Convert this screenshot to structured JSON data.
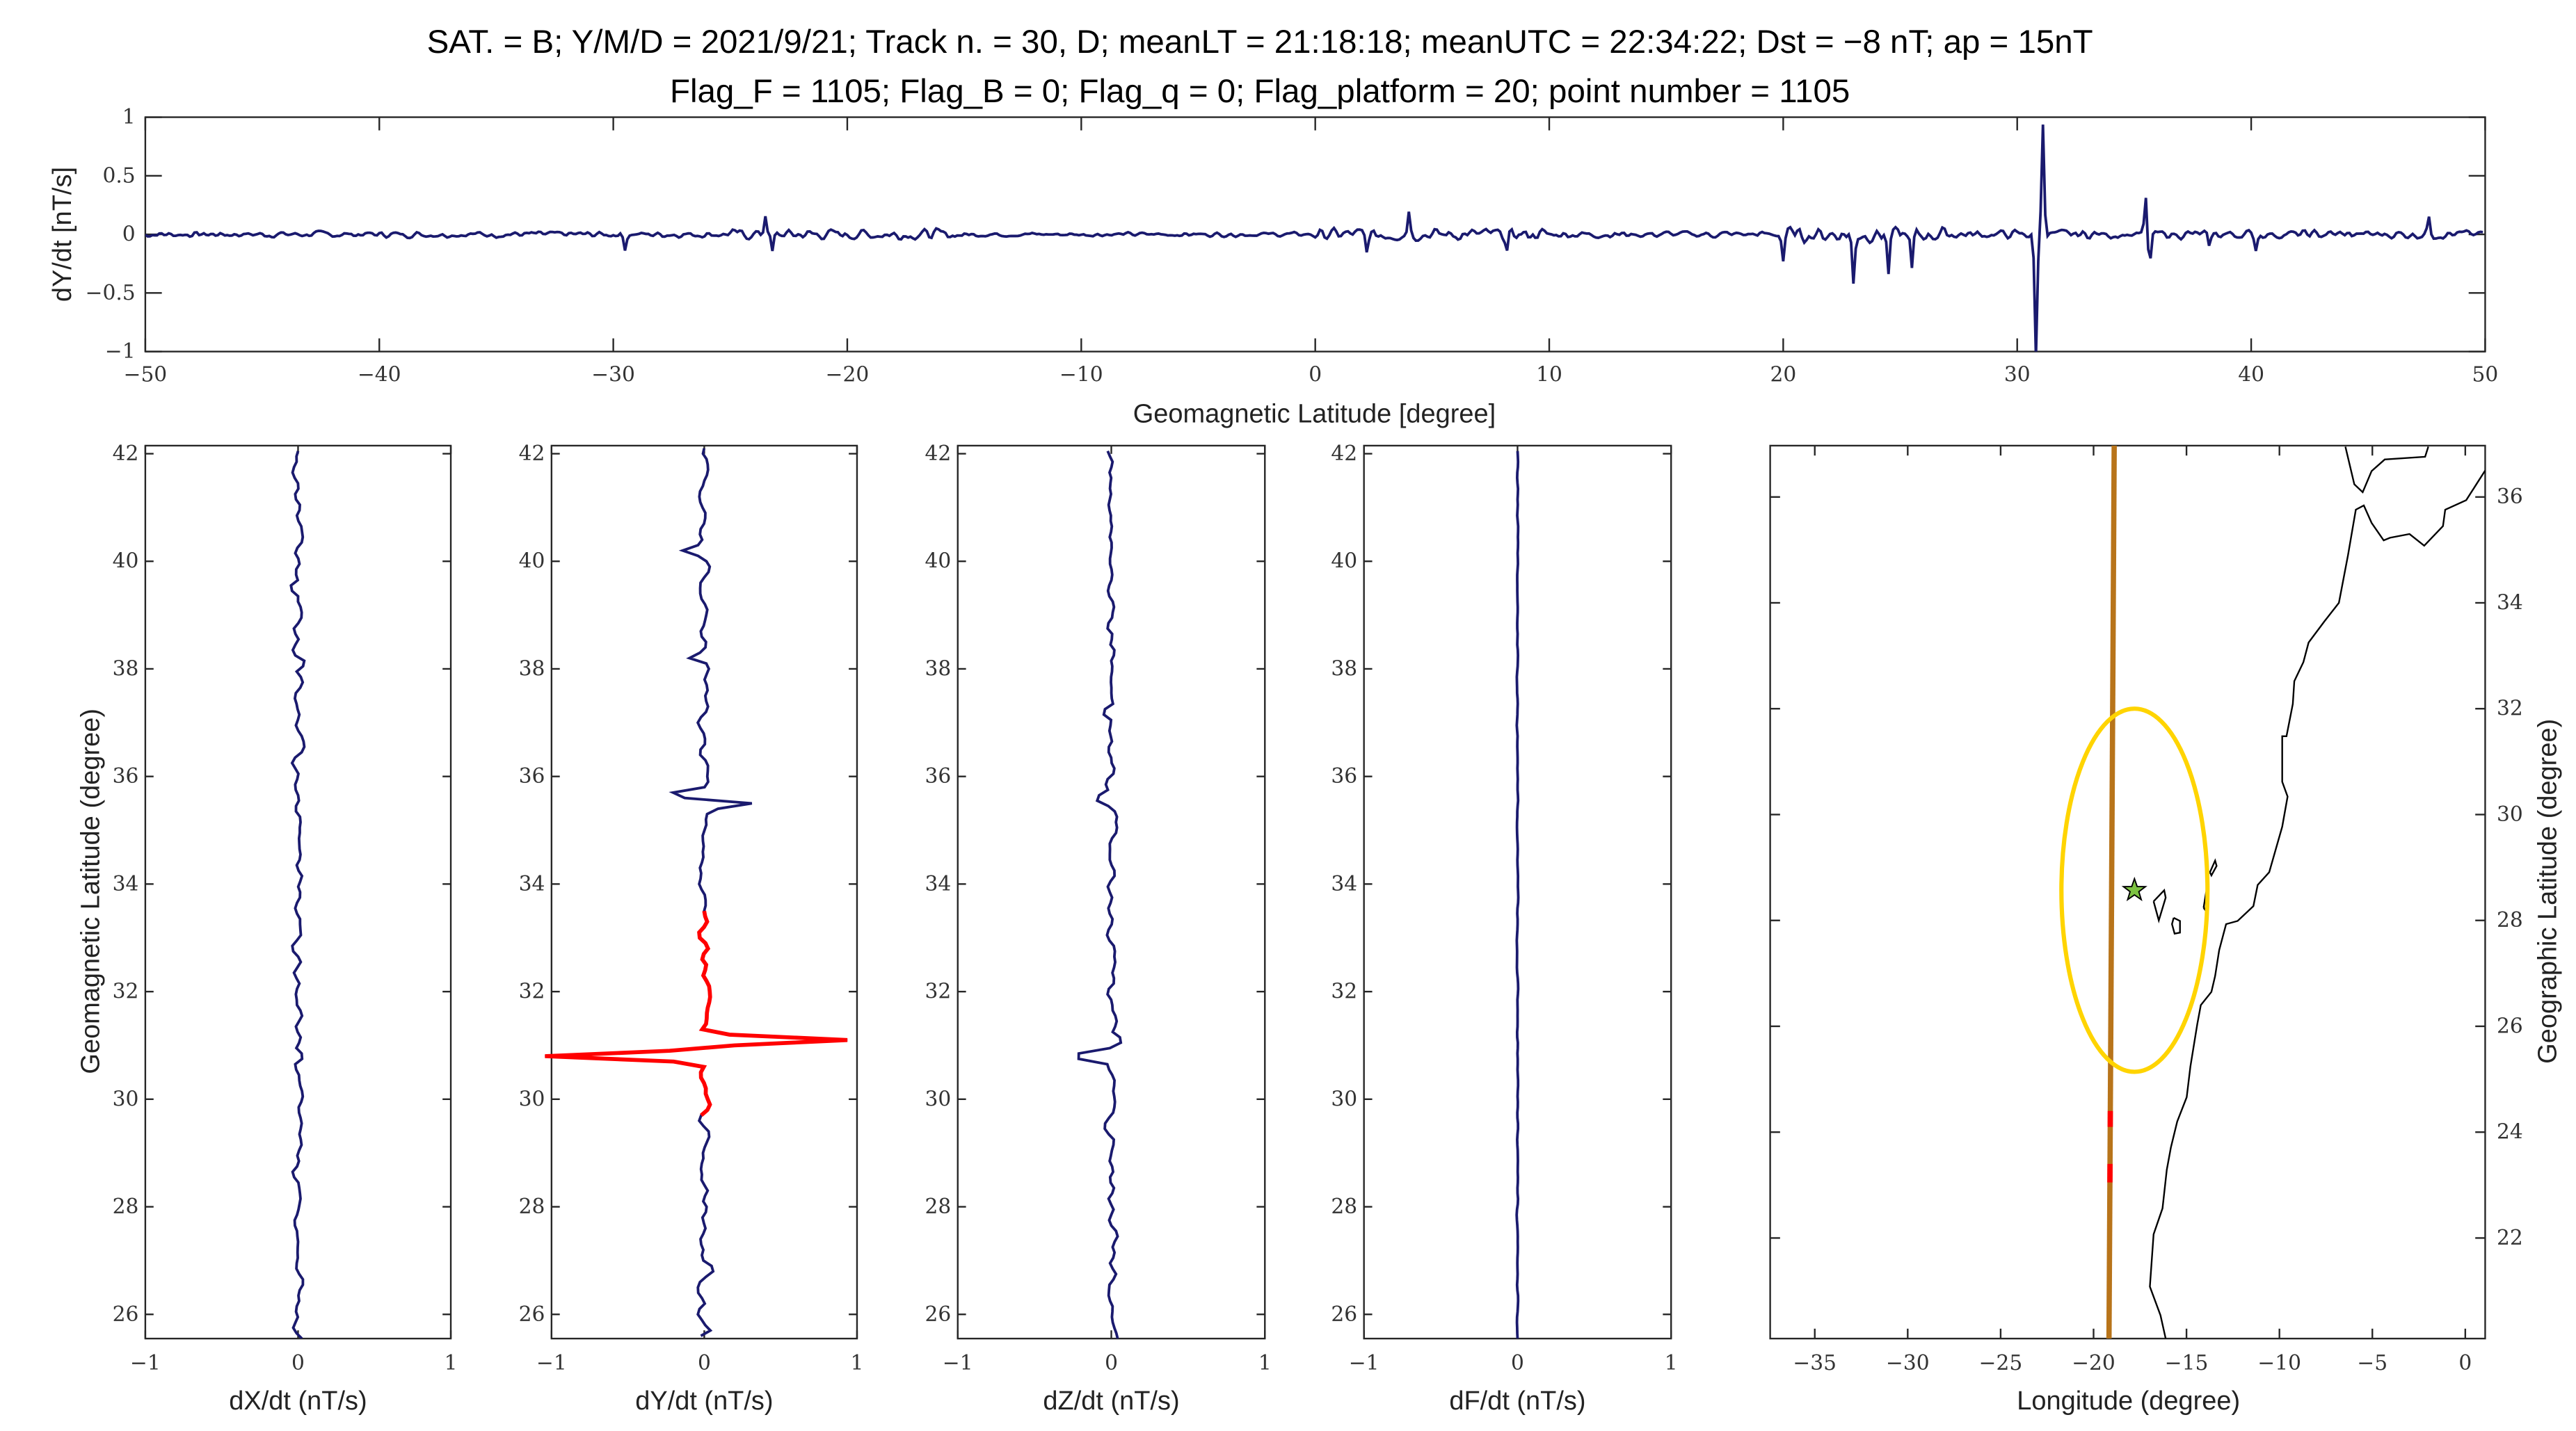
{
  "title": {
    "line1": "SAT. = B; Y/M/D = 2021/9/21; Track n. = 30, D; meanLT = 21:18:18; meanUTC = 22:34:22; Dst = −8 nT; ap = 15nT",
    "line2": "Flag_F = 1105; Flag_B = 0; Flag_q = 0; Flag_platform = 20; point number = 1105"
  },
  "colors": {
    "series": "#1a1a6e",
    "highlight": "#ff0000",
    "track": "#b8741a",
    "ellipse": "#ffd400",
    "star": "#7dc242",
    "coast": "#000000"
  },
  "chart_data": [
    {
      "id": "top",
      "type": "line",
      "xlabel": "Geomagnetic Latitude [degree]",
      "ylabel": "dY/dt [nT/s]",
      "xlim": [
        -50,
        50
      ],
      "ylim": [
        -1,
        1
      ],
      "xticks": [
        -50,
        -40,
        -30,
        -20,
        -10,
        0,
        10,
        20,
        30,
        40,
        50
      ],
      "xtick_labels": [
        "−50",
        "−40",
        "−30",
        "−20",
        "−10",
        "0",
        "10",
        "20",
        "30",
        "40",
        "50"
      ],
      "yticks": [
        -1,
        -0.5,
        0,
        0.5,
        1
      ],
      "ytick_labels": [
        "−1",
        "−0.5",
        "0",
        "0.5",
        "1"
      ],
      "series": "dY"
    },
    {
      "id": "dX",
      "type": "line",
      "xlabel": "dX/dt (nT/s)",
      "ylabel": "Geomagnetic Latitude (degree)",
      "xlim": [
        -1,
        1
      ],
      "ylim": [
        25.55,
        42.15
      ],
      "series": "dX"
    },
    {
      "id": "dY",
      "type": "line",
      "xlabel": "dY/dt (nT/s)",
      "xlim": [
        -1,
        1
      ],
      "ylim": [
        25.55,
        42.15
      ],
      "series": "dY",
      "highlight_range": [
        29.7,
        33.6
      ]
    },
    {
      "id": "dZ",
      "type": "line",
      "xlabel": "dZ/dt (nT/s)",
      "xlim": [
        -1,
        1
      ],
      "ylim": [
        25.55,
        42.15
      ],
      "series": "dZ"
    },
    {
      "id": "dF",
      "type": "line",
      "xlabel": "dF/dt (nT/s)",
      "xlim": [
        -1,
        1
      ],
      "ylim": [
        25.55,
        42.15
      ],
      "series": "dF"
    },
    {
      "id": "map",
      "type": "map",
      "xlabel": "Longitude (degree)",
      "ylabel": "Geographic Latitude (degree)",
      "xlim": [
        -37.4,
        1.07
      ],
      "ylim": [
        20.1,
        36.97
      ],
      "xticks": [
        -35,
        -30,
        -25,
        -20,
        -15,
        -10,
        -5,
        0
      ],
      "xtick_labels": [
        "−35",
        "−30",
        "−25",
        "−20",
        "−15",
        "−10",
        "−5",
        "0"
      ],
      "yticks": [
        22,
        24,
        26,
        28,
        30,
        32,
        34,
        36
      ],
      "ytick_labels": [
        "22",
        "24",
        "26",
        "28",
        "30",
        "32",
        "34",
        "36"
      ],
      "track": [
        [
          -18.89,
          36.97
        ],
        [
          -19.17,
          20.1
        ]
      ],
      "track_highlights": [
        [
          24.1,
          24.4
        ],
        [
          23.05,
          23.4
        ]
      ],
      "epicenter": {
        "lon": -17.8,
        "lat": 28.57
      },
      "ellipse": {
        "lon": -17.8,
        "lat": 28.57,
        "rlon": 3.93,
        "rlat": 3.43
      },
      "coastlines": [
        [
          [
            -6.45,
            36.95
          ],
          [
            -5.97,
            36.24
          ],
          [
            -5.52,
            36.09
          ],
          [
            -5.04,
            36.49
          ],
          [
            -4.33,
            36.71
          ],
          [
            -2.16,
            36.76
          ],
          [
            -1.99,
            36.95
          ]
        ],
        [
          [
            1.07,
            36.5
          ],
          [
            0.05,
            35.94
          ],
          [
            -1.08,
            35.76
          ],
          [
            -1.2,
            35.45
          ],
          [
            -2.21,
            35.08
          ],
          [
            -3.0,
            35.3
          ],
          [
            -4.05,
            35.23
          ],
          [
            -4.39,
            35.18
          ],
          [
            -5.04,
            35.51
          ],
          [
            -5.46,
            35.84
          ],
          [
            -5.89,
            35.76
          ],
          [
            -6.31,
            34.9
          ],
          [
            -6.8,
            34.0
          ],
          [
            -7.58,
            33.65
          ],
          [
            -8.43,
            33.25
          ],
          [
            -8.71,
            32.88
          ],
          [
            -9.2,
            32.52
          ],
          [
            -9.28,
            32.09
          ],
          [
            -9.62,
            31.48
          ],
          [
            -9.85,
            31.48
          ],
          [
            -9.85,
            30.62
          ],
          [
            -9.56,
            30.34
          ],
          [
            -9.85,
            29.77
          ],
          [
            -10.55,
            28.91
          ],
          [
            -11.17,
            28.67
          ],
          [
            -11.4,
            28.27
          ],
          [
            -12.25,
            27.99
          ],
          [
            -12.87,
            27.93
          ],
          [
            -13.24,
            27.44
          ],
          [
            -13.46,
            26.95
          ],
          [
            -13.66,
            26.65
          ],
          [
            -14.23,
            26.4
          ],
          [
            -14.42,
            26.04
          ],
          [
            -14.79,
            25.24
          ],
          [
            -14.99,
            24.66
          ],
          [
            -15.5,
            24.2
          ],
          [
            -15.84,
            23.71
          ],
          [
            -16.06,
            23.29
          ],
          [
            -16.29,
            22.56
          ],
          [
            -16.77,
            22.07
          ],
          [
            -16.97,
            21.08
          ],
          [
            -16.4,
            20.54
          ],
          [
            -16.12,
            20.1
          ]
        ],
        [
          [
            -16.77,
            28.36
          ],
          [
            -16.2,
            28.57
          ],
          [
            -16.12,
            28.43
          ],
          [
            -16.49,
            28.0
          ],
          [
            -16.77,
            28.36
          ]
        ],
        [
          [
            -15.69,
            28.05
          ],
          [
            -15.35,
            27.99
          ],
          [
            -15.35,
            27.77
          ],
          [
            -15.64,
            27.75
          ],
          [
            -15.78,
            27.93
          ],
          [
            -15.69,
            28.05
          ]
        ],
        [
          [
            -14.08,
            28.24
          ],
          [
            -13.94,
            28.54
          ],
          [
            -13.86,
            28.42
          ],
          [
            -14.0,
            28.2
          ],
          [
            -14.08,
            28.24
          ]
        ],
        [
          [
            -13.74,
            28.91
          ],
          [
            -13.46,
            29.13
          ],
          [
            -13.38,
            29.03
          ],
          [
            -13.66,
            28.85
          ],
          [
            -13.74,
            28.91
          ]
        ]
      ]
    }
  ],
  "panel_yticks": [
    26,
    28,
    30,
    32,
    34,
    36,
    38,
    40,
    42
  ],
  "panel_ytick_labels": [
    "26",
    "28",
    "30",
    "32",
    "34",
    "36",
    "38",
    "40",
    "42"
  ],
  "panel_xticks": [
    -1,
    0,
    1
  ],
  "panel_xtick_labels": [
    "−1",
    "0",
    "1"
  ],
  "series_model": {
    "dY": {
      "seed": 7,
      "step": 0.1,
      "range": [
        -50,
        50
      ],
      "noise": [
        {
          "from": -50,
          "to": -25,
          "amp": 0.035
        },
        {
          "from": -25,
          "to": -15,
          "amp": 0.06
        },
        {
          "from": -15,
          "to": 0,
          "amp": 0.025
        },
        {
          "from": 0,
          "to": 10,
          "amp": 0.07
        },
        {
          "from": 10,
          "to": 20,
          "amp": 0.04
        },
        {
          "from": 20,
          "to": 27,
          "amp": 0.09
        },
        {
          "from": 27,
          "to": 50,
          "amp": 0.05
        }
      ],
      "spikes": [
        [
          -23.5,
          0.18
        ],
        [
          -23.2,
          -0.17
        ],
        [
          -29.5,
          -0.12
        ],
        [
          2.2,
          -0.15
        ],
        [
          4.0,
          0.22
        ],
        [
          8.2,
          -0.15
        ],
        [
          20,
          -0.22
        ],
        [
          23,
          -0.42
        ],
        [
          24.5,
          -0.35
        ],
        [
          25.5,
          -0.33
        ],
        [
          30.8,
          -1.05
        ],
        [
          31.1,
          0.95
        ],
        [
          35.5,
          0.3
        ],
        [
          35.65,
          -0.3
        ],
        [
          38.2,
          -0.12
        ],
        [
          40.2,
          -0.12
        ],
        [
          47.6,
          0.16
        ]
      ]
    },
    "dX": {
      "seed": 11,
      "step": 0.1,
      "range": [
        25.55,
        42.15
      ],
      "noise": [
        {
          "from": 25,
          "to": 43,
          "amp": 0.05
        }
      ],
      "spikes": [
        [
          30.8,
          0.06
        ],
        [
          38.1,
          0.08
        ],
        [
          39.5,
          -0.08
        ]
      ]
    },
    "dZ": {
      "seed": 23,
      "step": 0.1,
      "range": [
        25.55,
        42.15
      ],
      "noise": [
        {
          "from": 25,
          "to": 43,
          "amp": 0.05
        }
      ],
      "spikes": [
        [
          30.8,
          -0.3
        ],
        [
          31.1,
          0.08
        ],
        [
          35.6,
          -0.1
        ],
        [
          37.2,
          -0.08
        ]
      ]
    },
    "dF": {
      "seed": 31,
      "step": 0.1,
      "range": [
        25.55,
        42.15
      ],
      "noise": [
        {
          "from": 25,
          "to": 43,
          "amp": 0.006
        }
      ],
      "spikes": []
    }
  }
}
